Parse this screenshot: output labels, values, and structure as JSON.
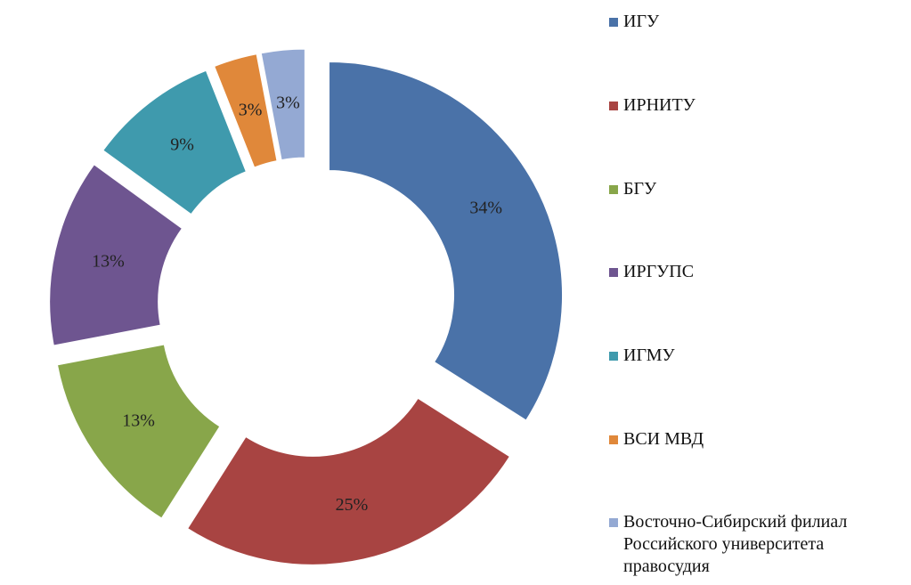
{
  "chart_data": {
    "type": "donut",
    "categories": [
      "ИГУ",
      "ИРНИТУ",
      "БГУ",
      "ИРГУПС",
      "ИГМУ",
      "ВСИ МВД",
      "Восточно-Сибирский филиал Российского университета правосудия"
    ],
    "values": [
      34,
      25,
      13,
      13,
      9,
      3,
      3
    ],
    "value_labels": [
      "34%",
      "25%",
      "13%",
      "13%",
      "9%",
      "3%",
      "3%"
    ],
    "colors": [
      "#4a72a8",
      "#a84442",
      "#88a64a",
      "#6e5590",
      "#3f9aad",
      "#e0883a",
      "#94a9d3"
    ],
    "legend": "right"
  }
}
